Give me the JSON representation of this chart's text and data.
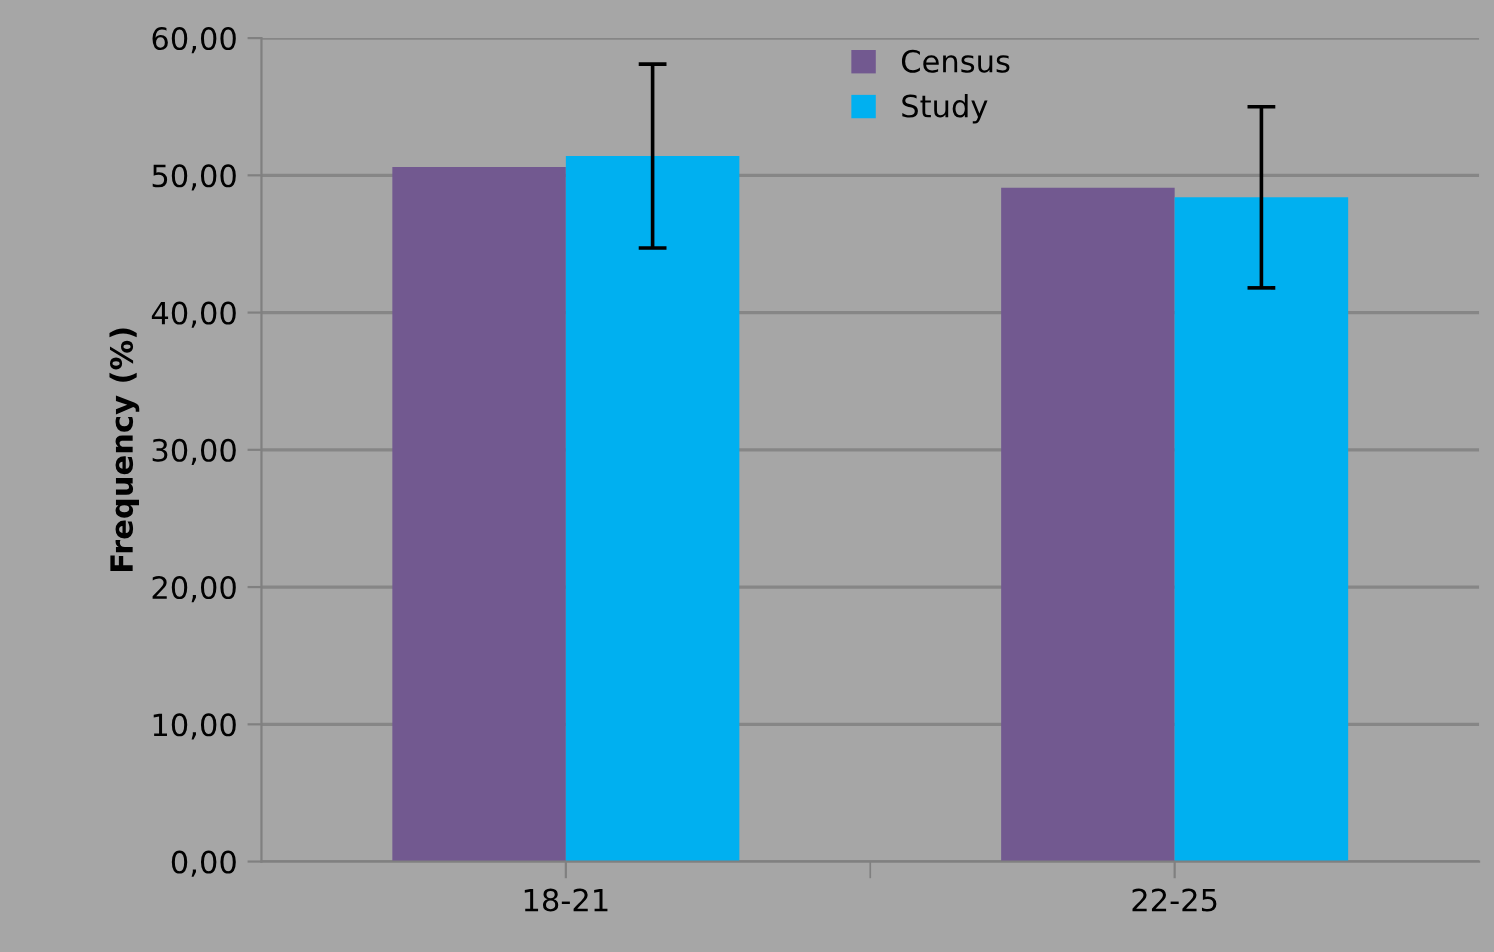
{
  "chart_data": {
    "type": "bar",
    "ylabel": "Frequency (%)",
    "categories": [
      "18-21",
      "22-25"
    ],
    "series": [
      {
        "name": "Census",
        "color": "#725990",
        "values": [
          50.6,
          49.1
        ]
      },
      {
        "name": "Study",
        "color": "#00b0f0",
        "values": [
          51.4,
          48.4
        ],
        "errors": [
          6.7,
          6.6
        ]
      }
    ],
    "ylim": [
      0,
      60
    ],
    "yticks": [
      {
        "value": 0,
        "label": "0,00"
      },
      {
        "value": 10,
        "label": "10,00"
      },
      {
        "value": 20,
        "label": "20,00"
      },
      {
        "value": 30,
        "label": "30,00"
      },
      {
        "value": 40,
        "label": "40,00"
      },
      {
        "value": 50,
        "label": "50,00"
      },
      {
        "value": 60,
        "label": "60,00"
      }
    ],
    "grid": "y",
    "legend": "top"
  }
}
